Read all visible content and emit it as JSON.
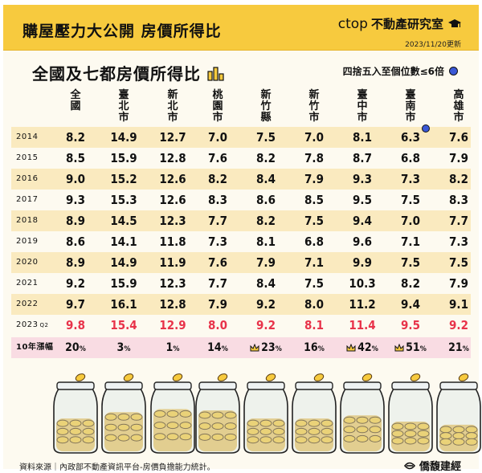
{
  "header": {
    "title": "購屋壓力大公開 房價所得比",
    "brand_logo": "ctop",
    "brand_name": "不動產研究室",
    "updated": "2023/11/20更新"
  },
  "footer": {
    "source": "資料來源｜內政部不動產資訊平台-房價負擔能力統計。",
    "brand": "僑馥建經"
  },
  "chart_data": {
    "type": "table",
    "title": "全國及七都房價所得比",
    "note": "四捨五入至個位數≤6倍",
    "columns": [
      "全國",
      "臺北市",
      "新北市",
      "桃園市",
      "新竹縣",
      "新竹市",
      "臺中市",
      "臺南市",
      "高雄市"
    ],
    "rows": [
      {
        "year": "2014",
        "q": "",
        "values": [
          "8.2",
          "14.9",
          "12.7",
          "7.0",
          "7.5",
          "7.0",
          "8.1",
          "6.3",
          "7.6"
        ]
      },
      {
        "year": "2015",
        "q": "",
        "values": [
          "8.5",
          "15.9",
          "12.8",
          "7.6",
          "8.2",
          "7.8",
          "8.7",
          "6.8",
          "7.9"
        ]
      },
      {
        "year": "2016",
        "q": "",
        "values": [
          "9.0",
          "15.2",
          "12.6",
          "8.2",
          "8.4",
          "7.9",
          "9.3",
          "7.3",
          "8.2"
        ]
      },
      {
        "year": "2017",
        "q": "",
        "values": [
          "9.3",
          "15.3",
          "12.6",
          "8.3",
          "8.6",
          "8.5",
          "9.5",
          "7.5",
          "8.3"
        ]
      },
      {
        "year": "2018",
        "q": "",
        "values": [
          "8.9",
          "14.5",
          "12.3",
          "7.7",
          "8.2",
          "7.5",
          "9.4",
          "7.0",
          "7.7"
        ]
      },
      {
        "year": "2019",
        "q": "",
        "values": [
          "8.6",
          "14.1",
          "11.8",
          "7.3",
          "8.1",
          "6.8",
          "9.6",
          "7.1",
          "7.3"
        ]
      },
      {
        "year": "2020",
        "q": "",
        "values": [
          "8.9",
          "14.9",
          "11.9",
          "7.6",
          "7.9",
          "7.1",
          "9.9",
          "7.5",
          "7.5"
        ]
      },
      {
        "year": "2021",
        "q": "",
        "values": [
          "9.2",
          "15.9",
          "12.3",
          "7.7",
          "8.4",
          "7.5",
          "10.3",
          "8.2",
          "7.9"
        ]
      },
      {
        "year": "2022",
        "q": "",
        "values": [
          "9.7",
          "16.1",
          "12.8",
          "7.9",
          "9.2",
          "8.0",
          "11.2",
          "9.4",
          "9.1"
        ]
      },
      {
        "year": "2023",
        "q": "Q2",
        "values": [
          "9.8",
          "15.4",
          "12.9",
          "8.0",
          "9.2",
          "8.1",
          "11.4",
          "9.5",
          "9.2"
        ]
      }
    ],
    "growth": {
      "label": "10年漲幅",
      "unit": "%",
      "values": [
        "20",
        "3",
        "1",
        "14",
        "23",
        "16",
        "42",
        "51",
        "21"
      ],
      "crowned": [
        false,
        false,
        false,
        false,
        true,
        false,
        true,
        true,
        false
      ]
    },
    "highlighted": [
      {
        "year": "2014",
        "column": "臺南市"
      }
    ],
    "latest_color": "#e8334a",
    "accent_color": "#f7ca3e",
    "dot_color": "#3a58d6",
    "jars_coin_fill": [
      0.55,
      0.65,
      0.7,
      0.68,
      0.55,
      0.55,
      0.6,
      0.5,
      0.45
    ]
  }
}
